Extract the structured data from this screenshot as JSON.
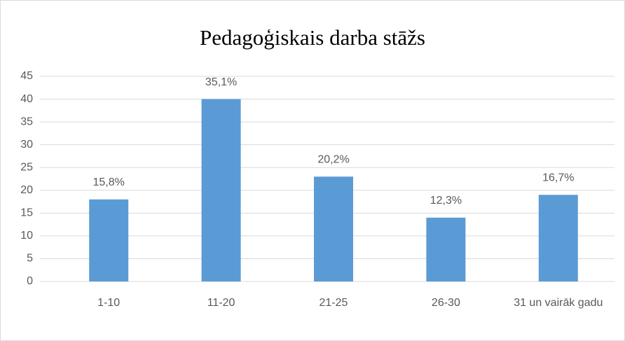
{
  "chart_data": {
    "type": "bar",
    "title": "Pedagoģiskais darba stāžs",
    "categories": [
      "1-10",
      "11-20",
      "21-25",
      "26-30",
      "31 un vairāk gadu"
    ],
    "values": [
      18,
      40,
      23,
      14,
      19
    ],
    "value_labels": [
      "15,8%",
      "35,1%",
      "20,2%",
      "12,3%",
      "16,7%"
    ],
    "color": "#5b9bd5",
    "ylim": [
      0,
      45
    ],
    "yticks": [
      0,
      5,
      10,
      15,
      20,
      25,
      30,
      35,
      40,
      45
    ],
    "grid": true
  }
}
